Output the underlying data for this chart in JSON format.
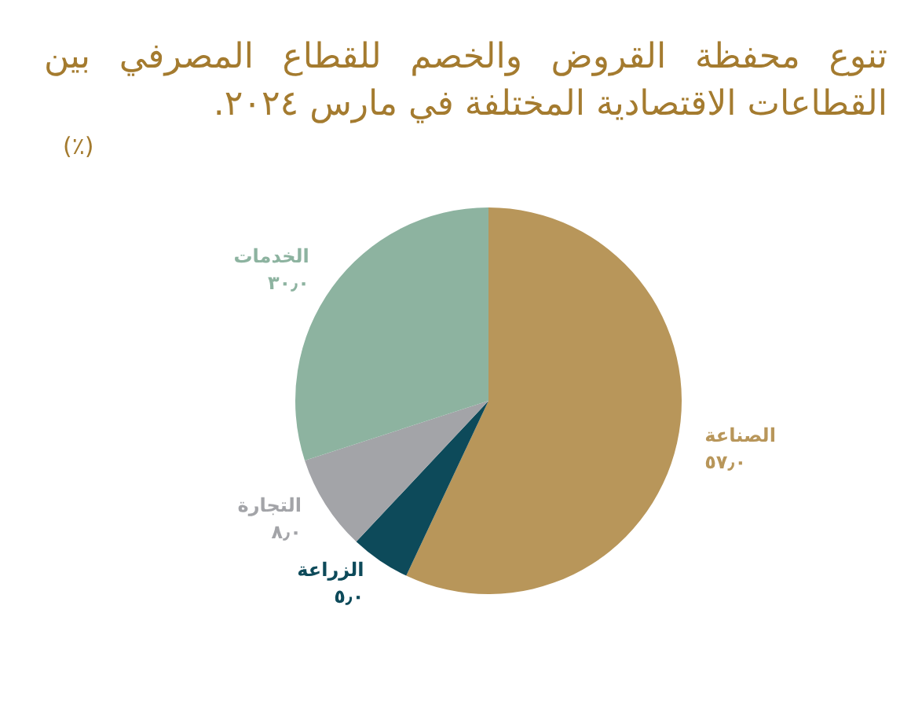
{
  "chart_data": {
    "type": "pie",
    "title": "تنوع محفظة القروض والخصم للقطاع المصرفي بين القطاعات الاقتصادية المختلفة في مارس ٢٠٢٤.",
    "subtitle": "(٪)",
    "categories": [
      "الصناعة",
      "الزراعة",
      "التجارة",
      "الخدمات"
    ],
    "values": [
      57.0,
      5.0,
      8.0,
      30.0
    ],
    "value_labels": [
      "٥٧٫٠",
      "٥٫٠",
      "٨٫٠",
      "٣٠٫٠"
    ],
    "colors": [
      "#b8965a",
      "#0d4a5a",
      "#a3a4a8",
      "#8db3a0"
    ],
    "legend": false
  }
}
